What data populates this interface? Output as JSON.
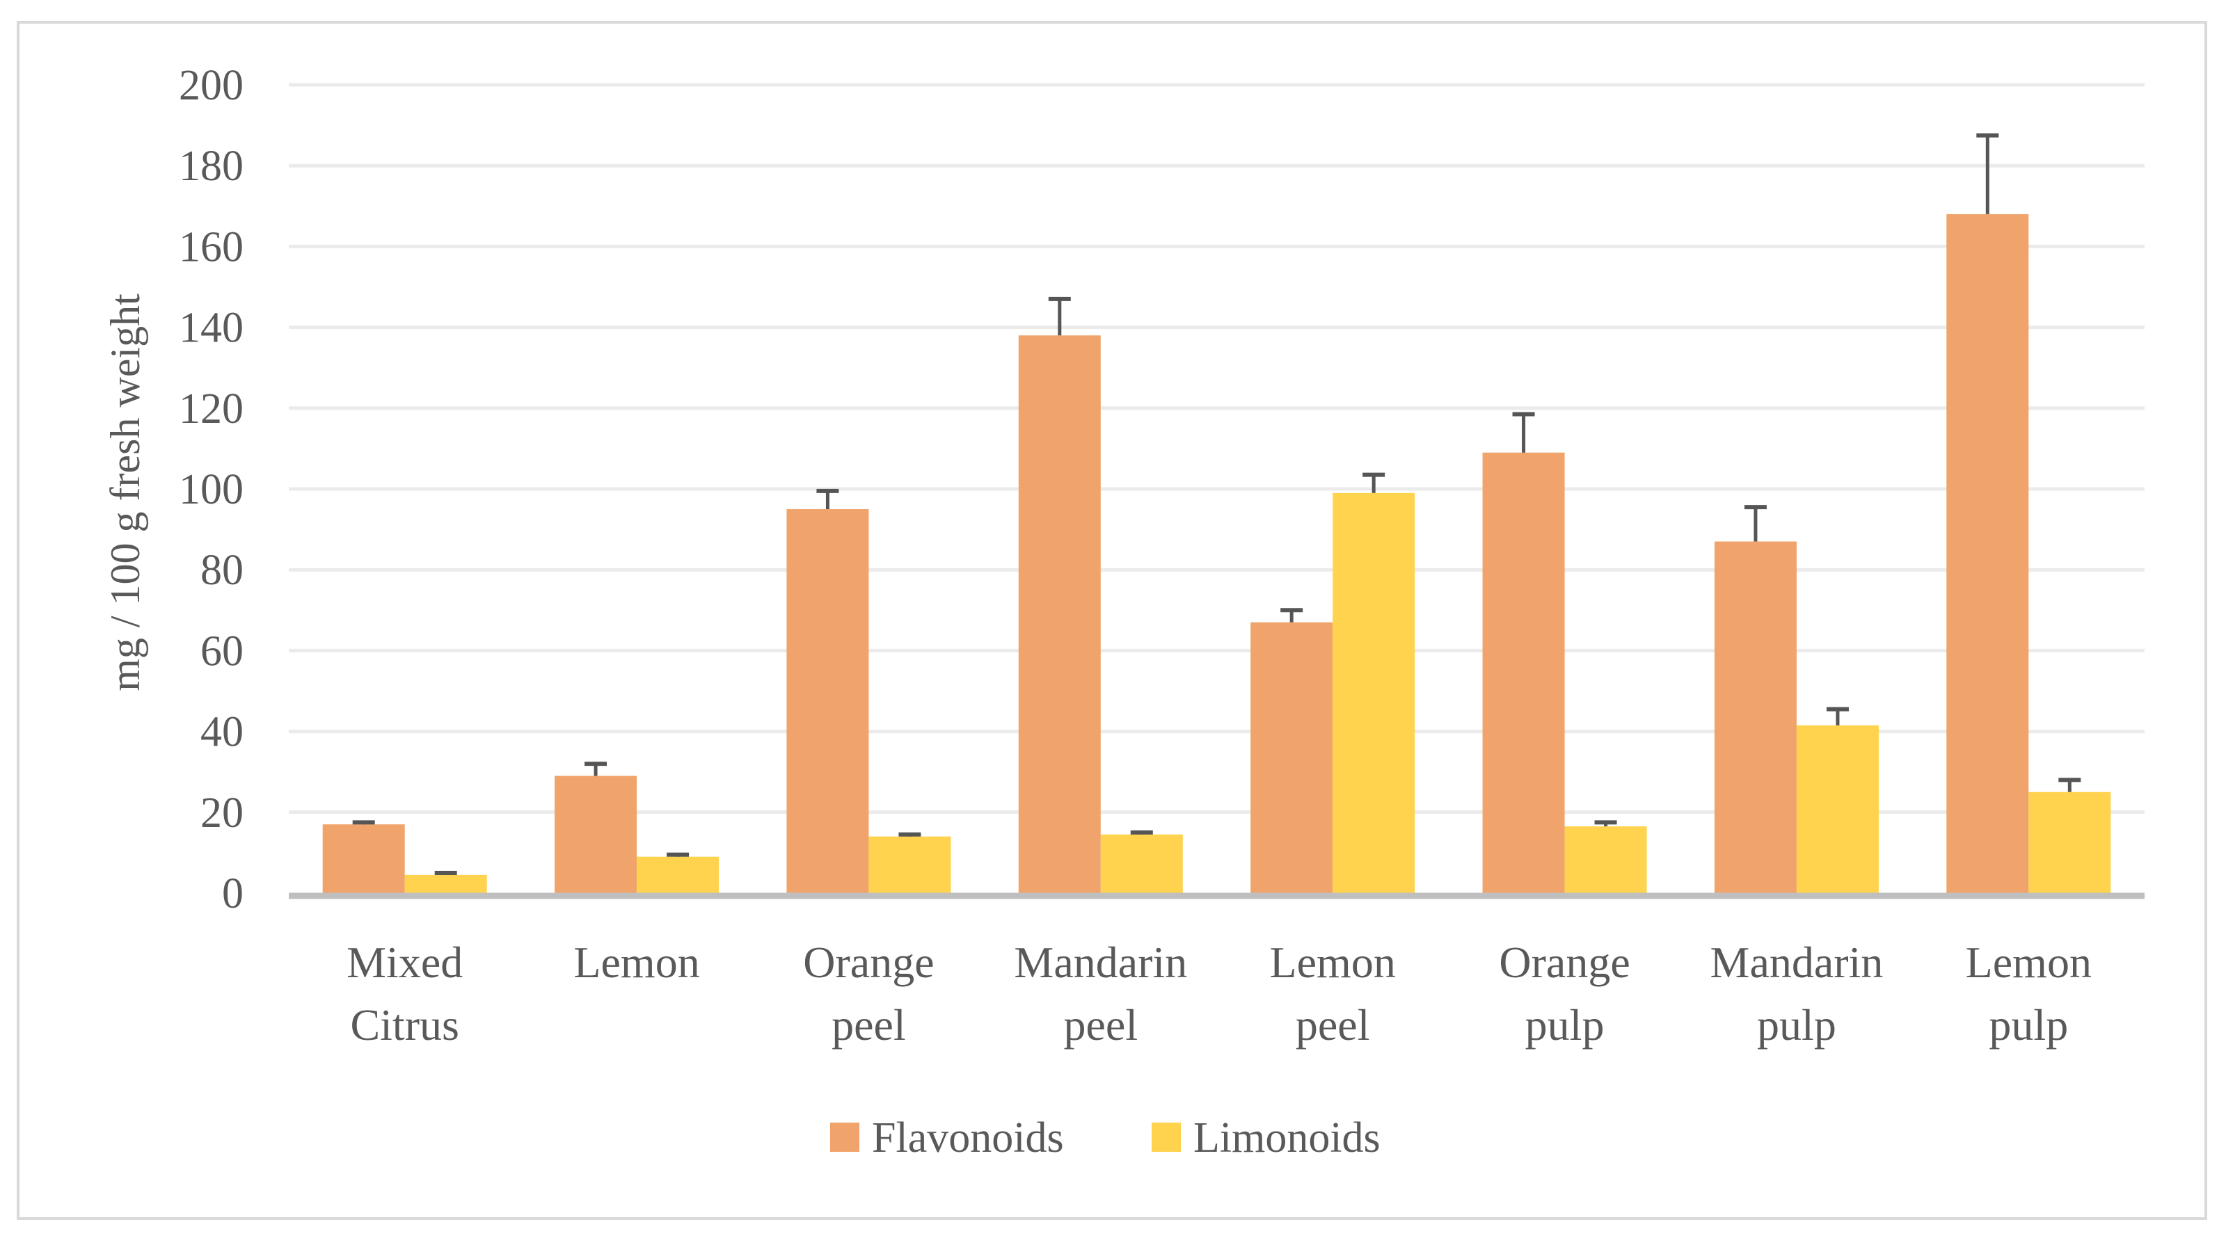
{
  "chart_data": {
    "type": "bar",
    "title": "",
    "xlabel": "",
    "ylabel": "mg / 100 g fresh weight",
    "ylim": [
      0,
      200
    ],
    "yticks": [
      0,
      20,
      40,
      60,
      80,
      100,
      120,
      140,
      160,
      180,
      200
    ],
    "grid": true,
    "legend_position": "bottom",
    "categories": [
      [
        "Mixed",
        "Citrus"
      ],
      [
        "Lemon"
      ],
      [
        "Orange",
        "peel"
      ],
      [
        "Mandarin",
        "peel"
      ],
      [
        "Lemon",
        "peel"
      ],
      [
        "Orange",
        "pulp"
      ],
      [
        "Mandarin",
        "pulp"
      ],
      [
        "Lemon",
        "pulp"
      ]
    ],
    "series": [
      {
        "name": "Flavonoids",
        "color": "#f0a46b",
        "values": [
          17,
          29,
          95,
          138,
          67,
          109,
          87,
          168
        ],
        "error": [
          0.5,
          3,
          4.5,
          9,
          3,
          9.5,
          8.5,
          19.5
        ]
      },
      {
        "name": "Limonoids",
        "color": "#ffd34d",
        "values": [
          4.5,
          9,
          14,
          14.5,
          99,
          16.5,
          41.5,
          25
        ],
        "error": [
          0.5,
          0.5,
          0.5,
          0.5,
          4.5,
          1,
          4,
          3
        ]
      }
    ],
    "error_bar_color": "#555555",
    "axis_color": "#bfbfbf",
    "grid_color": "#ebebeb"
  }
}
